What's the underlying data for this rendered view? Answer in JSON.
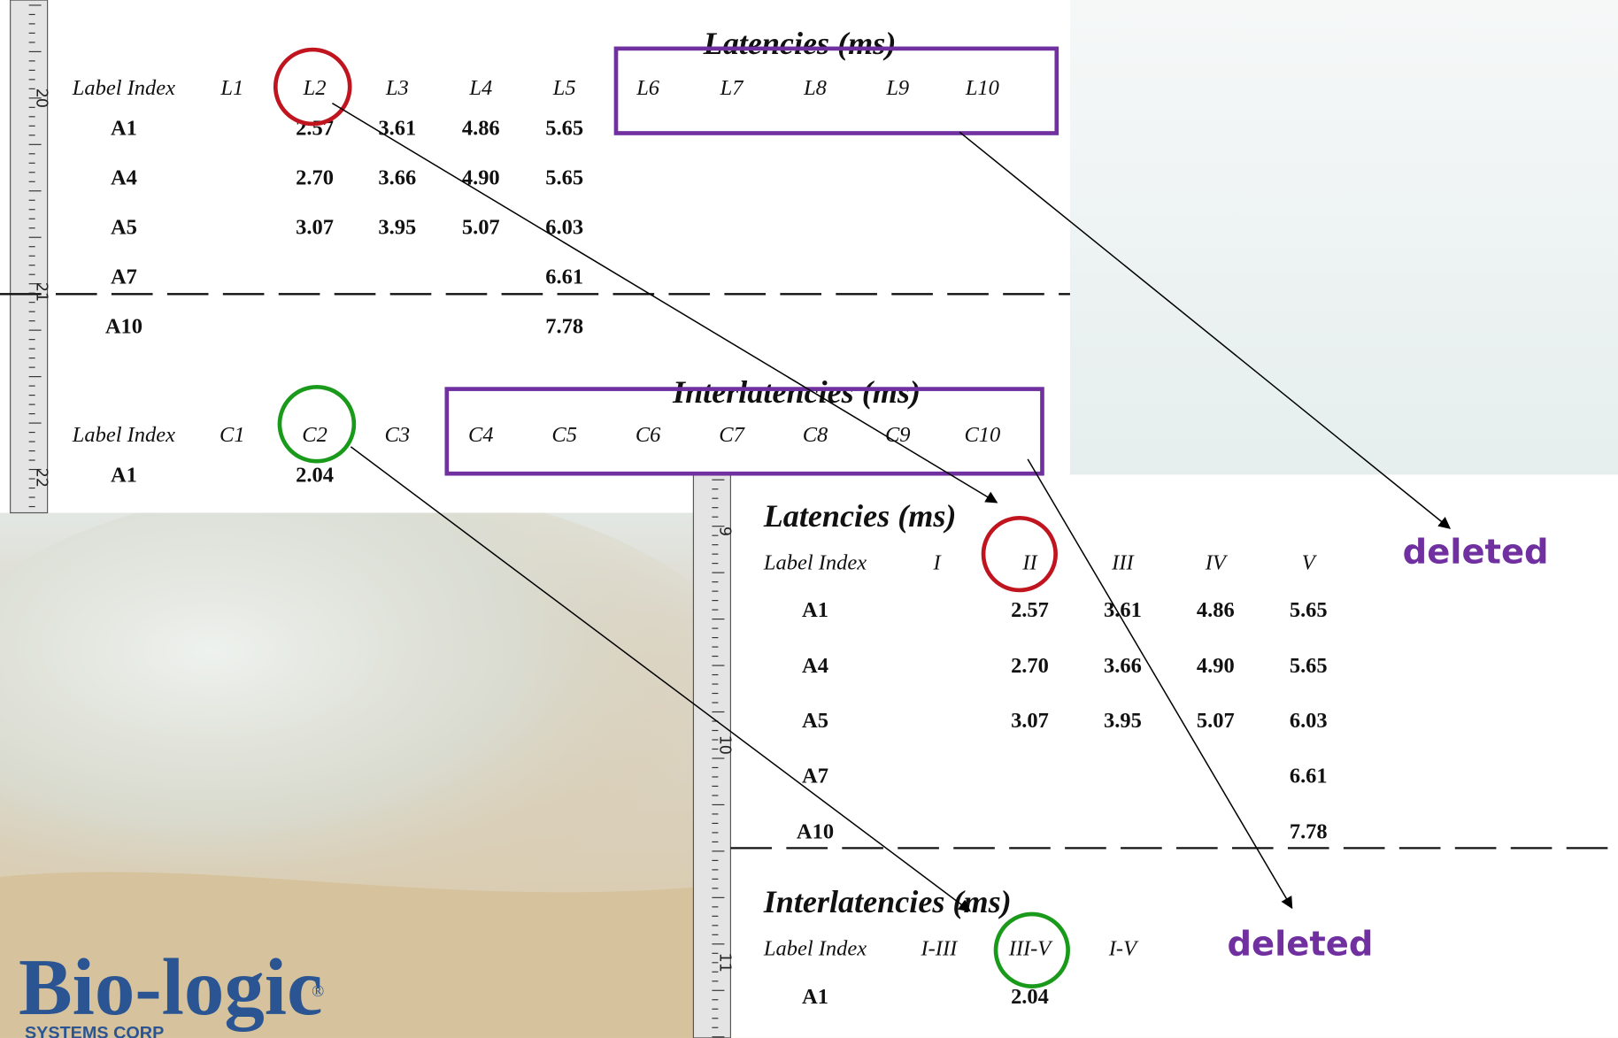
{
  "top_screenshot": {
    "ruler_labels": [
      "20",
      "21",
      "22"
    ],
    "latencies": {
      "title": "Latencies (ms)",
      "headers": [
        "Label Index",
        "L1",
        "L2",
        "L3",
        "L4",
        "L5",
        "L6",
        "L7",
        "L8",
        "L9",
        "L10"
      ],
      "rows": [
        [
          "A1",
          null,
          "2.57",
          "3.61",
          "4.86",
          "5.65"
        ],
        [
          "A4",
          null,
          "2.70",
          "3.66",
          "4.90",
          "5.65"
        ],
        [
          "A5",
          null,
          "3.07",
          "3.95",
          "5.07",
          "6.03"
        ],
        [
          "A7",
          null,
          null,
          null,
          null,
          "6.61"
        ],
        [
          "A10",
          null,
          null,
          null,
          null,
          "7.78"
        ]
      ]
    },
    "interlatencies": {
      "title": "Interlatencies (ms)",
      "headers": [
        "Label Index",
        "C1",
        "C2",
        "C3",
        "C4",
        "C5",
        "C6",
        "C7",
        "C8",
        "C9",
        "C10"
      ],
      "rows": [
        [
          "A1",
          null,
          "2.04"
        ]
      ]
    }
  },
  "bottom_screenshot": {
    "ruler_labels": [
      "9",
      "10",
      "11"
    ],
    "latencies": {
      "title": "Latencies (ms)",
      "headers": [
        "Label Index",
        "I",
        "II",
        "III",
        "IV",
        "V"
      ],
      "rows": [
        [
          "A1",
          null,
          "2.57",
          "3.61",
          "4.86",
          "5.65"
        ],
        [
          "A4",
          null,
          "2.70",
          "3.66",
          "4.90",
          "5.65"
        ],
        [
          "A5",
          null,
          "3.07",
          "3.95",
          "5.07",
          "6.03"
        ],
        [
          "A7",
          null,
          null,
          null,
          null,
          "6.61"
        ],
        [
          "A10",
          null,
          null,
          null,
          null,
          "7.78"
        ]
      ]
    },
    "interlatencies": {
      "title": "Interlatencies (ms)",
      "headers": [
        "Label Index",
        "I-III",
        "III-V",
        "I-V"
      ],
      "rows": [
        [
          "A1",
          null,
          "2.04"
        ]
      ]
    }
  },
  "annotations": [
    "deleted",
    "deleted"
  ],
  "logo": {
    "name": "Bio-logic",
    "mark": "®",
    "subtitle": "SYSTEMS CORP"
  }
}
